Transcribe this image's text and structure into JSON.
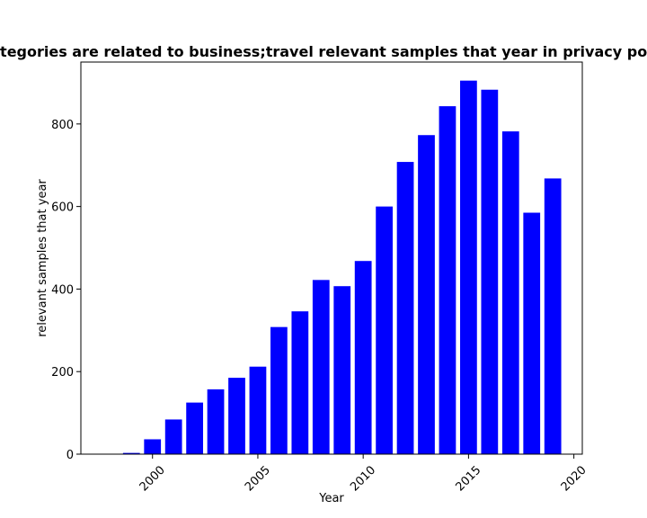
{
  "chart_data": {
    "type": "bar",
    "title": "Categories are related to business;travel relevant samples that year in privacy policies",
    "xlabel": "Year",
    "ylabel": "relevant samples that year",
    "bar_color": "#0000ff",
    "x": [
      1999,
      2000,
      2001,
      2002,
      2003,
      2004,
      2005,
      2006,
      2007,
      2008,
      2009,
      2010,
      2011,
      2012,
      2013,
      2014,
      2015,
      2016,
      2017,
      2018,
      2019
    ],
    "values": [
      3,
      36,
      84,
      125,
      157,
      185,
      212,
      308,
      346,
      422,
      407,
      468,
      600,
      708,
      773,
      843,
      905,
      883,
      782,
      585,
      668
    ],
    "xlim": [
      1996.6,
      2020.4
    ],
    "ylim": [
      0,
      950
    ],
    "xticks": [
      2000,
      2005,
      2010,
      2015,
      2020
    ],
    "yticks": [
      0,
      200,
      400,
      600,
      800
    ],
    "xtick_rotation": 45,
    "grid": false
  }
}
